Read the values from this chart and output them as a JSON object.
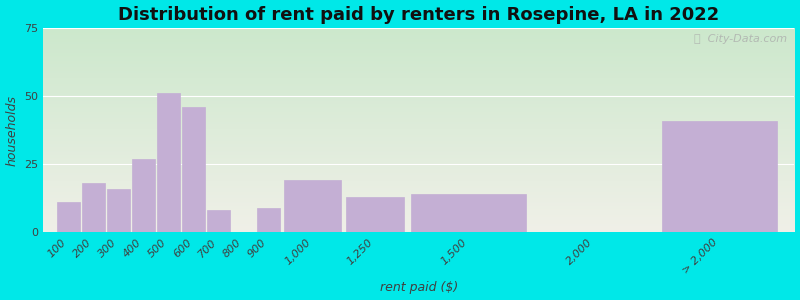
{
  "title": "Distribution of rent paid by renters in Rosepine, LA in 2022",
  "xlabel": "rent paid ($)",
  "ylabel": "households",
  "bar_color": "#c4afd4",
  "outer_background": "#00e8e8",
  "background_color_top": "#cce8cc",
  "background_color_bottom": "#f0f0e8",
  "title_fontsize": 13,
  "axis_label_fontsize": 9,
  "tick_fontsize": 8,
  "watermark_text": "ⓘ  City-Data.com",
  "bin_edges": [
    100,
    200,
    300,
    400,
    500,
    600,
    700,
    800,
    900,
    1000,
    1250,
    1500,
    2000,
    2500
  ],
  "bin_labels": [
    "100",
    "200",
    "300",
    "400",
    "500",
    "600",
    "700",
    "800",
    "900",
    "1,000",
    "1,250",
    "1,500",
    "2,000",
    "> 2,000"
  ],
  "values": [
    11,
    18,
    16,
    27,
    51,
    46,
    8,
    0,
    9,
    19,
    13,
    14,
    0,
    41
  ],
  "last_bar_width": 500,
  "ylim": [
    0,
    75
  ],
  "yticks": [
    0,
    25,
    50,
    75
  ]
}
